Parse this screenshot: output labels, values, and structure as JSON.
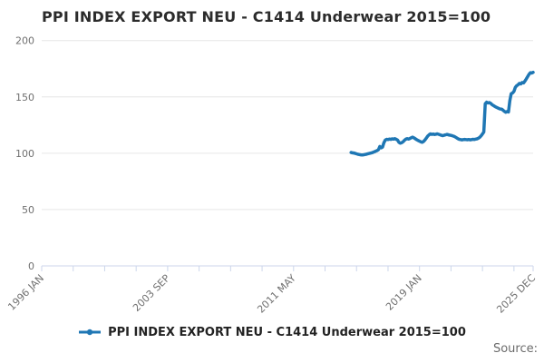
{
  "title": "PPI INDEX EXPORT NEU - C1414 Underwear 2015=100",
  "legend": {
    "label": "PPI INDEX EXPORT NEU - C1414 Underwear 2015=100",
    "marker": "line-with-dot-marker"
  },
  "source": {
    "label": "Source:"
  },
  "colors": {
    "line": "#1f77b4",
    "grid": "#e6e6e6",
    "axis": "#ccd6eb",
    "tick_text": "#707070",
    "title_text": "#2b2b2b",
    "legend_text": "#222222",
    "source_text": "#6b6b6b"
  },
  "chart_data": {
    "type": "line",
    "title": "PPI INDEX EXPORT NEU - C1414 Underwear 2015=100",
    "grid": "horizontal",
    "legend_position": "bottom",
    "y_axis": {
      "ylim": [
        0,
        200
      ],
      "ticks": [
        0,
        50,
        100,
        150,
        200
      ]
    },
    "x_axis": {
      "range_start": "1996 JAN",
      "range_end": "2025 DEC",
      "unit": "months since 1996 JAN",
      "tick_labels": [
        "1996 JAN",
        "2003 SEP",
        "2011 MAY",
        "2019 JAN",
        "2025 DEC"
      ],
      "tick_label_months": [
        0,
        92,
        184,
        276,
        359
      ],
      "minor_tick_months": [
        0,
        23,
        46,
        69,
        92,
        115,
        138,
        161,
        184,
        207,
        230,
        253,
        276,
        299,
        322,
        345,
        359
      ]
    },
    "series": [
      {
        "name": "PPI INDEX EXPORT NEU - C1414 Underwear 2015=100",
        "frequency": "monthly",
        "start_period": "2014 NOV",
        "start_month_index": 226,
        "values": [
          100.7,
          100.4,
          100.2,
          99.9,
          99.5,
          99.1,
          98.8,
          98.6,
          98.5,
          98.6,
          98.8,
          99.1,
          99.4,
          99.7,
          100.0,
          100.4,
          100.8,
          101.3,
          101.8,
          102.4,
          103.2,
          106.0,
          104.8,
          105.4,
          109.3,
          111.6,
          112.4,
          112.1,
          112.6,
          112.3,
          112.8,
          112.5,
          112.9,
          112.4,
          111.6,
          109.6,
          108.9,
          109.4,
          110.2,
          111.5,
          112.5,
          112.9,
          112.6,
          113.1,
          113.7,
          114.3,
          113.6,
          112.8,
          112.0,
          111.3,
          110.7,
          110.1,
          109.7,
          110.4,
          111.8,
          113.4,
          115.2,
          116.4,
          117.2,
          116.7,
          117.0,
          116.6,
          116.9,
          117.2,
          116.8,
          116.4,
          115.9,
          115.6,
          116.0,
          116.3,
          116.7,
          116.4,
          116.1,
          115.8,
          115.5,
          115.1,
          114.5,
          113.7,
          112.9,
          112.4,
          112.1,
          111.9,
          112.1,
          112.3,
          112.1,
          112.0,
          112.2,
          111.9,
          112.1,
          112.4,
          112.2,
          112.5,
          112.8,
          113.3,
          114.1,
          115.4,
          117.0,
          118.8,
          143.9,
          145.3,
          144.6,
          145.0,
          144.3,
          143.1,
          142.3,
          141.6,
          140.9,
          140.3,
          139.7,
          139.3,
          139.2,
          138.2,
          137.2,
          136.4,
          137.0,
          136.6,
          146.5,
          152.8,
          153.5,
          155.0,
          158.5,
          160.0,
          160.8,
          162.0,
          161.5,
          162.8,
          162.4,
          164.0,
          166.0,
          168.0,
          170.0,
          171.5,
          171.2,
          171.8
        ]
      }
    ]
  }
}
